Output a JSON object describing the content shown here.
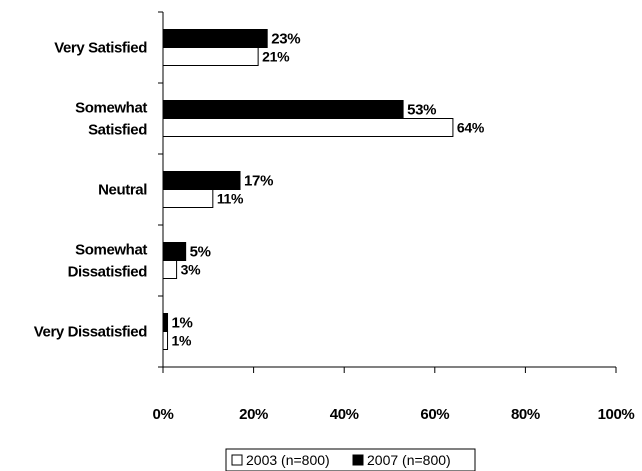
{
  "chart_data": {
    "type": "bar",
    "orientation": "horizontal",
    "categories": [
      [
        "Very Satisfied"
      ],
      [
        "Somewhat",
        "Satisfied"
      ],
      [
        "Neutral"
      ],
      [
        "Somewhat",
        "Dissatisfied"
      ],
      [
        "Very Dissatisfied"
      ]
    ],
    "series": [
      {
        "name": "2007 (n=800)",
        "color": "#000000",
        "values": [
          23,
          53,
          17,
          5,
          1
        ],
        "labels": [
          "23%",
          "53%",
          "17%",
          "5%",
          "1%"
        ]
      },
      {
        "name": "2003 (n=800)",
        "color": "#ffffff",
        "values": [
          21,
          64,
          11,
          3,
          1
        ],
        "labels": [
          "21%",
          "64%",
          "11%",
          "3%",
          "1%"
        ]
      }
    ],
    "x_ticks": [
      "0%",
      "20%",
      "40%",
      "60%",
      "80%",
      "100%"
    ],
    "xlim": [
      0,
      100
    ],
    "grid": false,
    "legend": {
      "placement": "bottom-center",
      "entries": [
        {
          "text": "2003 (n=800)",
          "color": "#ffffff"
        },
        {
          "text": "2007 (n=800)",
          "color": "#000000"
        }
      ]
    }
  }
}
